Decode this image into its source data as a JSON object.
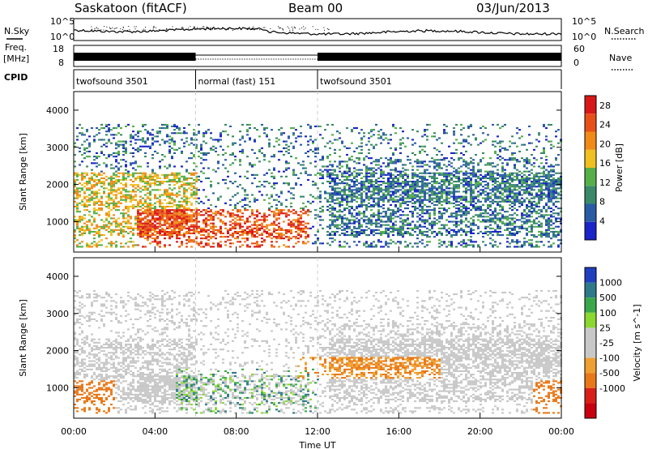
{
  "header": {
    "station": "Saskatoon (fitACF)",
    "beam": "Beam 00",
    "date": "03/Jun/2013"
  },
  "panels": {
    "nsky_label": "N.Sky",
    "nsearch_label": "N.Search",
    "freq_label_top": "Freq.",
    "freq_label_unit": "[MHz]",
    "nave_label": "Nave",
    "cpid_label": "CPID",
    "nsky_ticks": [
      "10^5",
      "10^0"
    ],
    "nsearch_ticks": [
      "10^5",
      "10^0"
    ],
    "freq_ticks": [
      "18",
      "8"
    ],
    "nave_ticks": [
      "60",
      "0"
    ]
  },
  "colors": {
    "power": [
      "#1a24c8",
      "#2a5ca6",
      "#3a8a6a",
      "#56b04a",
      "#f0c020",
      "#f08a18",
      "#e8501a",
      "#d81818"
    ],
    "velocity": [
      "#2040c0",
      "#2f7a8a",
      "#3aa84a",
      "#8ad830",
      "#c8c8c8",
      "#c8c8c8",
      "#f0a030",
      "#e87818",
      "#d82018",
      "#c80010"
    ]
  },
  "chart_data": [
    {
      "type": "heatmap",
      "name": "cpid",
      "segments": [
        {
          "label": "twofsound 3501",
          "start": "00:00",
          "end": "06:00"
        },
        {
          "label": "normal (fast) 151",
          "start": "06:00",
          "end": "12:00"
        },
        {
          "label": "twofsound 3501",
          "start": "12:00",
          "end": "24:00"
        }
      ]
    },
    {
      "type": "heatmap",
      "title": "",
      "xlabel": "Time UT",
      "ylabel": "Slant Range [km]",
      "xlim": [
        "00:00",
        "24:00"
      ],
      "ylim": [
        180,
        4500
      ],
      "x_ticks": [
        "00:00",
        "04:00",
        "08:00",
        "12:00",
        "16:00",
        "20:00",
        "00:00"
      ],
      "y_ticks": [
        1000,
        2000,
        3000,
        4000
      ],
      "colorbar": {
        "label": "Power [dB]",
        "ticks": [
          4,
          8,
          12,
          16,
          20,
          24,
          28
        ],
        "range": [
          0,
          30
        ]
      }
    },
    {
      "type": "heatmap",
      "title": "",
      "xlabel": "Time UT",
      "ylabel": "Slant Range [km]",
      "xlim": [
        "00:00",
        "24:00"
      ],
      "ylim": [
        180,
        4500
      ],
      "x_ticks": [
        "00:00",
        "04:00",
        "08:00",
        "12:00",
        "16:00",
        "20:00",
        "00:00"
      ],
      "y_ticks": [
        1000,
        2000,
        3000,
        4000
      ],
      "colorbar": {
        "label": "Velocity [m s^-1]",
        "ticks": [
          1000,
          500,
          100,
          25,
          -25,
          -100,
          -500,
          -1000
        ]
      }
    }
  ]
}
